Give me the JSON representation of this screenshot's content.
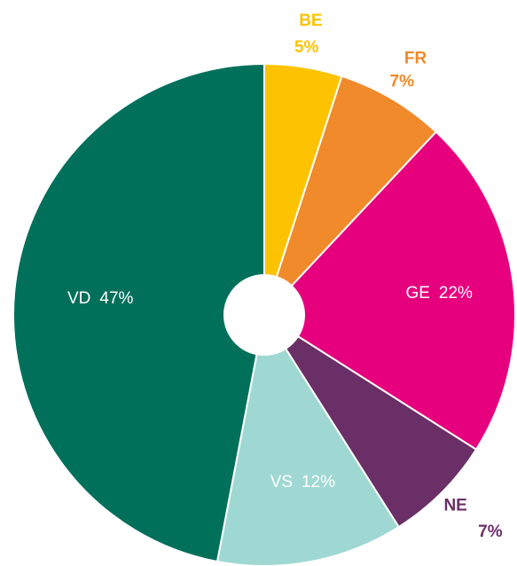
{
  "chart_data": {
    "type": "pie",
    "categories": [
      "BE",
      "FR",
      "GE",
      "NE",
      "VS",
      "VD"
    ],
    "values": [
      5,
      7,
      22,
      7,
      12,
      47
    ],
    "value_labels": [
      "5%",
      "7%",
      "22%",
      "7%",
      "12%",
      "47%"
    ],
    "colors": [
      "#fdc300",
      "#f08a2b",
      "#e6007e",
      "#6a2f66",
      "#9fd8d3",
      "#00705b"
    ]
  }
}
